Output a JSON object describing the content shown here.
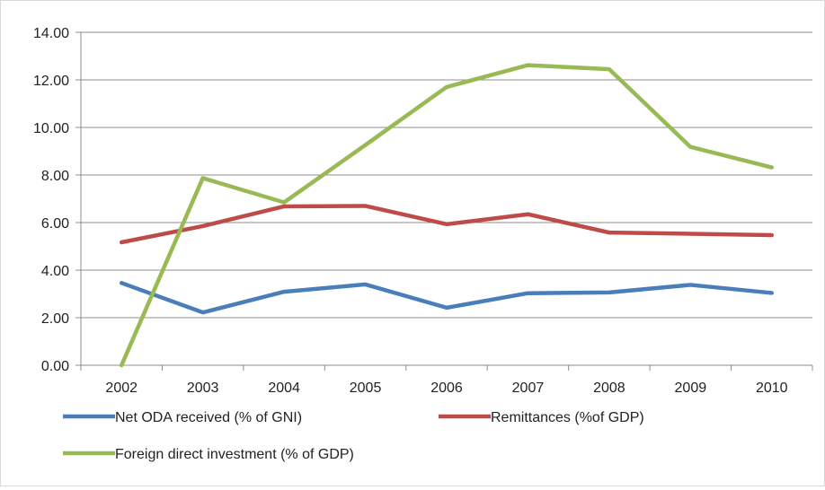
{
  "chart_data": {
    "type": "line",
    "categories": [
      "2002",
      "2003",
      "2004",
      "2005",
      "2006",
      "2007",
      "2008",
      "2009",
      "2010"
    ],
    "series": [
      {
        "name": "Net ODA received (% of GNI)",
        "color": "#4a7ebb",
        "values": [
          3.46,
          2.22,
          3.09,
          3.4,
          2.42,
          3.03,
          3.06,
          3.38,
          3.04
        ]
      },
      {
        "name": "Remittances (%of GDP)",
        "color": "#be4b48",
        "values": [
          5.17,
          5.85,
          6.68,
          6.7,
          5.93,
          6.35,
          5.58,
          5.53,
          5.47
        ]
      },
      {
        "name": "Foreign direct investment (% of GDP)",
        "color": "#98b954",
        "values": [
          0.0,
          7.87,
          6.85,
          9.26,
          11.7,
          12.62,
          12.45,
          9.18,
          8.32
        ]
      }
    ],
    "ylim": [
      0,
      14
    ],
    "yticks": [
      "0.00",
      "2.00",
      "4.00",
      "6.00",
      "8.00",
      "10.00",
      "12.00",
      "14.00"
    ],
    "grid": "horizontal",
    "legend_position": "bottom"
  }
}
